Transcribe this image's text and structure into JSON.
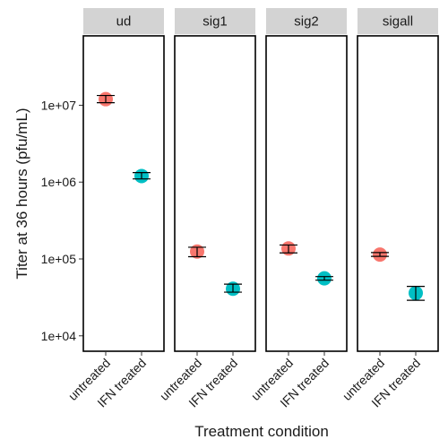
{
  "chart_data": {
    "type": "scatter",
    "xlabel": "Treatment condition",
    "ylabel": "Titer at 36 hours (pfu/mL)",
    "yscale": "log10",
    "ylim": [
      6300,
      80000000
    ],
    "yticks": [
      {
        "value": 10000,
        "label": "1e+04"
      },
      {
        "value": 100000,
        "label": "1e+05"
      },
      {
        "value": 1000000,
        "label": "1e+06"
      },
      {
        "value": 10000000,
        "label": "1e+07"
      }
    ],
    "categories": [
      "untreated",
      "IFN treated"
    ],
    "colors": {
      "untreated": "#F8766D",
      "IFN treated": "#00BFC4"
    },
    "grid": false,
    "legend": "none",
    "facets": [
      {
        "label": "ud",
        "points": [
          {
            "x": "untreated",
            "y": 12000000,
            "ymin": 10800000,
            "ymax": 13400000
          },
          {
            "x": "IFN treated",
            "y": 1200000,
            "ymin": 1100000,
            "ymax": 1330000
          }
        ]
      },
      {
        "label": "sig1",
        "points": [
          {
            "x": "untreated",
            "y": 125000,
            "ymin": 107000,
            "ymax": 142000
          },
          {
            "x": "IFN treated",
            "y": 41000,
            "ymin": 37000,
            "ymax": 47000
          }
        ]
      },
      {
        "label": "sig2",
        "points": [
          {
            "x": "untreated",
            "y": 137000,
            "ymin": 120000,
            "ymax": 152000
          },
          {
            "x": "IFN treated",
            "y": 56000,
            "ymin": 53000,
            "ymax": 59000
          }
        ]
      },
      {
        "label": "sigall",
        "points": [
          {
            "x": "untreated",
            "y": 114000,
            "ymin": 108000,
            "ymax": 121000
          },
          {
            "x": "IFN treated",
            "y": 36000,
            "ymin": 29000,
            "ymax": 44000
          }
        ]
      }
    ]
  }
}
